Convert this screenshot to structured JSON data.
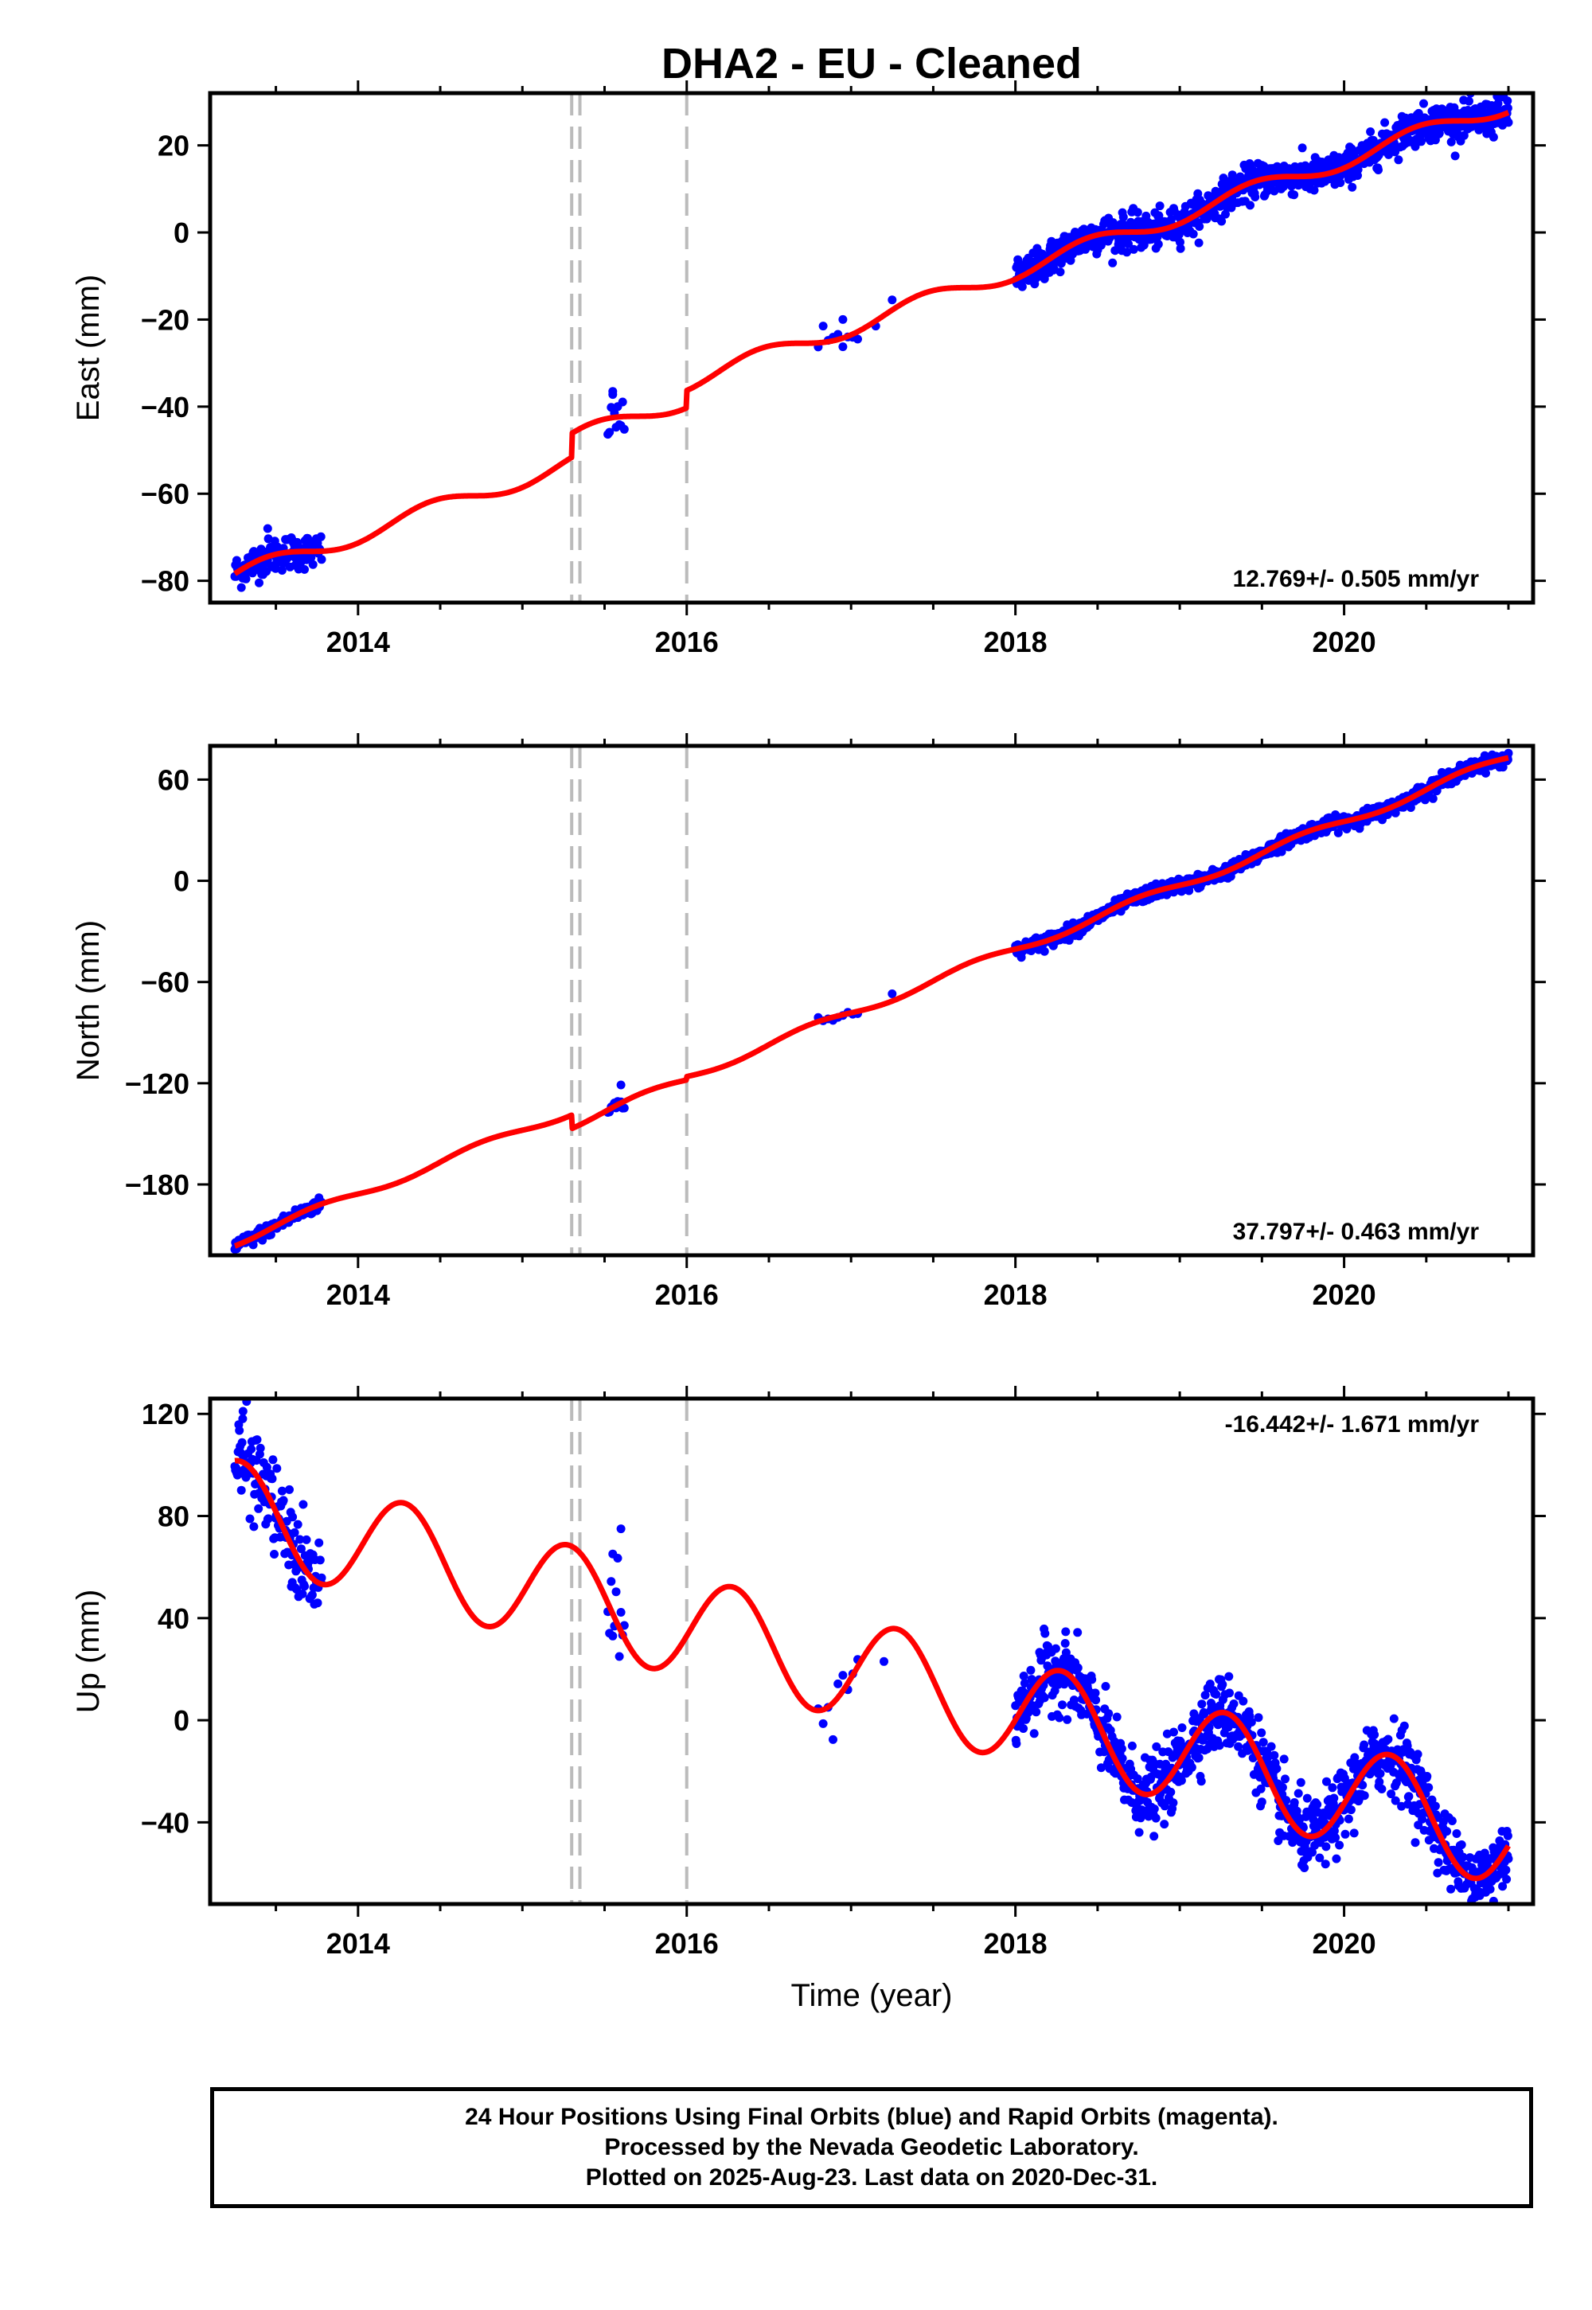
{
  "title": "DHA2  - EU - Cleaned",
  "chart_data": [
    {
      "type": "scatter",
      "component": "east",
      "ylabel": "East (mm)",
      "xlabel": "",
      "xlim": [
        2013.1,
        2021.15
      ],
      "ylim": [
        -85,
        32
      ],
      "yticks": [
        -80,
        -60,
        -40,
        -20,
        0,
        20
      ],
      "xticks": [
        2014,
        2016,
        2018,
        2020
      ],
      "rate_label": "12.769+/- 0.505 mm/yr",
      "rate_position": "bottom-right",
      "break_lines": [
        2015.3,
        2015.35,
        2016.0
      ],
      "model": {
        "x0": 2013.25,
        "y0": -79,
        "rate": 12.769,
        "annual_amp": 2.0,
        "annual_phase": 0.2,
        "offsets": [
          {
            "t": 2015.3,
            "d": 5.5
          },
          {
            "t": 2016.0,
            "d": 4.0
          }
        ]
      },
      "data_segments": [
        {
          "start": 2013.25,
          "end": 2013.78,
          "step": 0.004,
          "noise": 2.0
        },
        {
          "start": 2015.52,
          "end": 2015.62,
          "step": 0.01,
          "noise": 3.0
        },
        {
          "start": 2016.8,
          "end": 2017.05,
          "step": 0.03,
          "noise": 1.5
        },
        {
          "start": 2018.0,
          "end": 2021.0,
          "step": 0.003,
          "noise": 2.0
        }
      ],
      "outliers": [
        [
          2013.45,
          -68
        ],
        [
          2015.55,
          -36.5
        ],
        [
          2016.95,
          -20
        ],
        [
          2017.25,
          -15.5
        ],
        [
          2017.15,
          -21.5
        ]
      ]
    },
    {
      "type": "scatter",
      "component": "north",
      "ylabel": "North (mm)",
      "xlabel": "",
      "xlim": [
        2013.1,
        2021.15
      ],
      "ylim": [
        -222,
        80
      ],
      "yticks": [
        -180,
        -120,
        -60,
        0,
        60
      ],
      "xticks": [
        2014,
        2016,
        2018,
        2020
      ],
      "rate_label": "37.797+/- 0.463 mm/yr",
      "rate_position": "bottom-right",
      "break_lines": [
        2015.3,
        2015.35,
        2016.0
      ],
      "model": {
        "x0": 2013.25,
        "y0": -214,
        "rate": 37.797,
        "annual_amp": 2.5,
        "annual_phase": 0.5,
        "offsets": [
          {
            "t": 2015.3,
            "d": -8.0
          },
          {
            "t": 2016.0,
            "d": 2.0
          }
        ]
      },
      "data_segments": [
        {
          "start": 2013.25,
          "end": 2013.78,
          "step": 0.004,
          "noise": 2.0
        },
        {
          "start": 2015.52,
          "end": 2015.62,
          "step": 0.01,
          "noise": 2.5
        },
        {
          "start": 2016.8,
          "end": 2017.05,
          "step": 0.03,
          "noise": 1.5
        },
        {
          "start": 2018.0,
          "end": 2021.0,
          "step": 0.003,
          "noise": 2.0
        }
      ],
      "outliers": [
        [
          2017.25,
          -67
        ],
        [
          2015.6,
          -121
        ]
      ]
    },
    {
      "type": "scatter",
      "component": "up",
      "ylabel": "Up (mm)",
      "xlabel": "Time (year)",
      "xlim": [
        2013.1,
        2021.15
      ],
      "ylim": [
        -72,
        126
      ],
      "yticks": [
        -40,
        0,
        40,
        80,
        120
      ],
      "xticks": [
        2014,
        2016,
        2018,
        2020
      ],
      "rate_label": "-16.442+/- 1.671 mm/yr",
      "rate_position": "top-right",
      "break_lines": [
        2015.3,
        2015.35,
        2016.0
      ],
      "model": {
        "x0": 2013.25,
        "y0": 82,
        "rate": -16.442,
        "annual_amp": 20.0,
        "annual_phase": 0.03,
        "offsets": [
          {
            "t": 2015.3,
            "d": 0.0
          },
          {
            "t": 2016.0,
            "d": 0.0
          }
        ]
      },
      "data_segments": [
        {
          "start": 2013.25,
          "end": 2013.78,
          "step": 0.004,
          "noise": 9.0
        },
        {
          "start": 2015.52,
          "end": 2015.62,
          "step": 0.01,
          "noise": 10.0
        },
        {
          "start": 2016.8,
          "end": 2017.05,
          "step": 0.03,
          "noise": 6.0
        },
        {
          "start": 2018.0,
          "end": 2021.0,
          "step": 0.003,
          "noise": 7.0
        }
      ],
      "outliers": [
        [
          2013.3,
          121
        ],
        [
          2013.6,
          54
        ],
        [
          2015.6,
          75
        ],
        [
          2015.55,
          33
        ],
        [
          2017.2,
          23
        ],
        [
          2020.8,
          -68
        ]
      ]
    }
  ],
  "colors": {
    "data": "#0000ff",
    "model": "#ff0000",
    "break_line": "#bbbbbb",
    "frame": "#000000"
  },
  "footer": {
    "line1": "24 Hour Positions Using Final Orbits (blue) and Rapid Orbits (magenta).",
    "line2": "Processed by the Nevada Geodetic Laboratory.",
    "line3": "Plotted on 2025-Aug-23. Last data on 2020-Dec-31."
  }
}
